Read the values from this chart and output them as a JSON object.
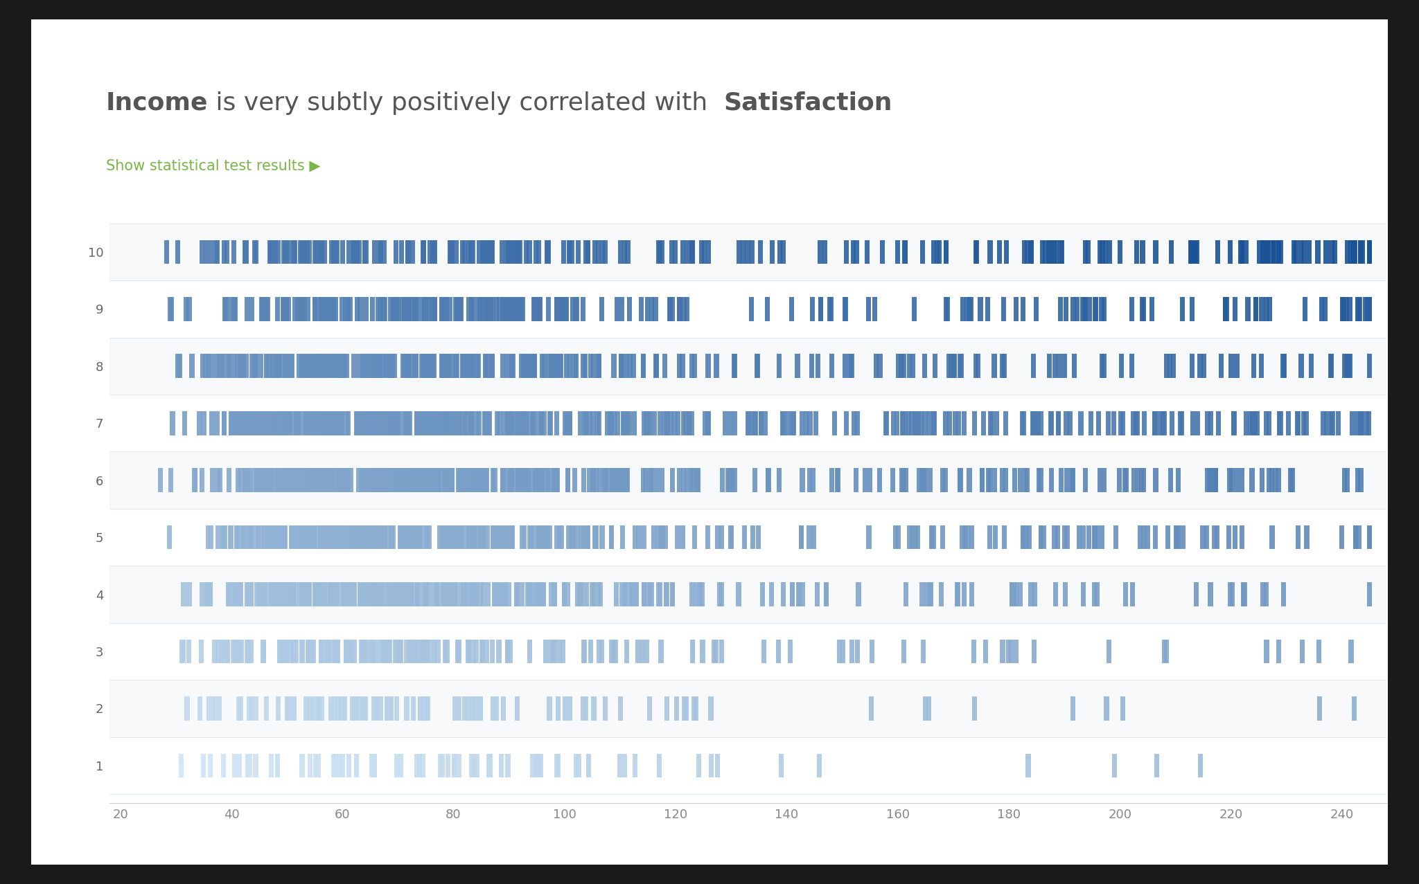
{
  "title_bold1": "Income",
  "title_normal": " is very subtly positively correlated with  ",
  "title_bold2": "Satisfaction",
  "subtitle": "Show statistical test results ▶",
  "subtitle_color": "#7ab648",
  "title_color": "#555555",
  "bg_outer": "#1a1a1a",
  "bg_card": "#ffffff",
  "xlim": [
    18,
    248
  ],
  "ylim": [
    0.35,
    10.65
  ],
  "xticks": [
    20,
    40,
    60,
    80,
    100,
    120,
    140,
    160,
    180,
    200,
    220,
    240
  ],
  "yticks": [
    1,
    2,
    3,
    4,
    5,
    6,
    7,
    8,
    9,
    10
  ],
  "bar_width": 0.9,
  "bar_height": 0.42,
  "seed": 42,
  "n_points": 2500
}
